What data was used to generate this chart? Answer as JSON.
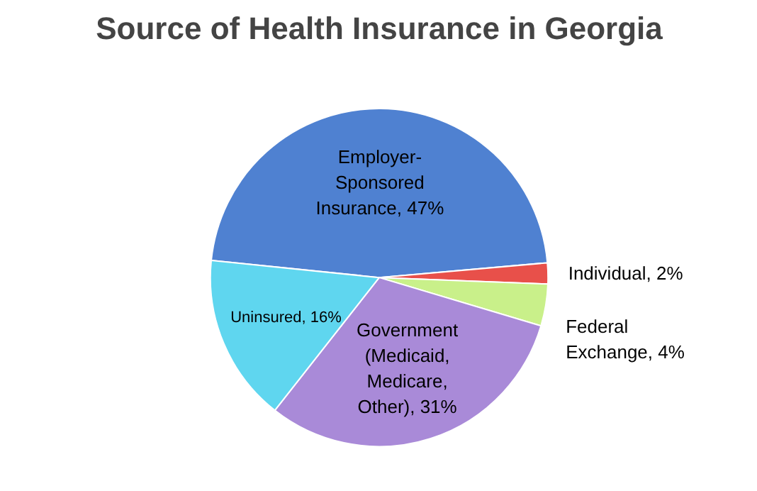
{
  "chart_data": {
    "type": "pie",
    "title": "Source of Health Insurance in Georgia",
    "categories": [
      "Employer-Sponsored Insurance",
      "Individual",
      "Federal Exchange",
      "Government (Medicaid, Medicare, Other)",
      "Uninsured"
    ],
    "values": [
      47,
      2,
      4,
      31,
      16
    ],
    "value_labels": [
      "47%",
      "2%",
      "4%",
      "31%",
      "16%"
    ],
    "colors": [
      "#4f81d1",
      "#e8504a",
      "#c9f08a",
      "#a98ad8",
      "#5fd6ef"
    ]
  }
}
